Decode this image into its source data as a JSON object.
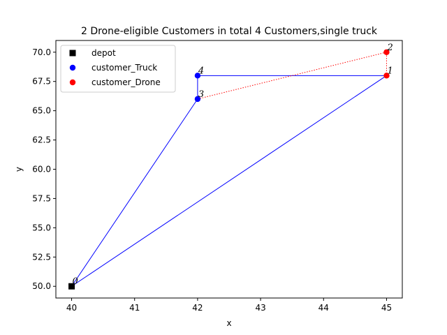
{
  "chart_data": {
    "type": "scatter",
    "title": "2 Drone-eligible Customers in total 4 Customers,single truck",
    "xlabel": "x",
    "ylabel": "y",
    "xlim": [
      39.75,
      45.25
    ],
    "ylim": [
      49.0,
      71.0
    ],
    "xticks": [
      40,
      41,
      42,
      43,
      44,
      45
    ],
    "xtick_labels": [
      "40",
      "41",
      "42",
      "43",
      "44",
      "45"
    ],
    "yticks": [
      50.0,
      52.5,
      55.0,
      57.5,
      60.0,
      62.5,
      65.0,
      67.5,
      70.0
    ],
    "ytick_labels": [
      "50.0",
      "52.5",
      "55.0",
      "57.5",
      "60.0",
      "62.5",
      "65.0",
      "67.5",
      "70.0"
    ],
    "grid": false,
    "legend_position": "top-left",
    "series": [
      {
        "name": "depot",
        "marker": "square",
        "color": "#000000",
        "points": [
          {
            "x": 40,
            "y": 50,
            "label": "0"
          }
        ]
      },
      {
        "name": "customer_Truck",
        "marker": "circle",
        "color": "#0000ff",
        "points": [
          {
            "x": 42,
            "y": 68,
            "label": "4"
          },
          {
            "x": 42,
            "y": 66,
            "label": "3"
          }
        ]
      },
      {
        "name": "customer_Drone",
        "marker": "circle",
        "color": "#ff0000",
        "points": [
          {
            "x": 45,
            "y": 68,
            "label": "1"
          },
          {
            "x": 45,
            "y": 70,
            "label": "2"
          }
        ]
      }
    ],
    "truck_route": {
      "color": "#0000ff",
      "style": "solid",
      "path": [
        {
          "x": 40,
          "y": 50
        },
        {
          "x": 42,
          "y": 66
        },
        {
          "x": 42,
          "y": 68
        },
        {
          "x": 45,
          "y": 68
        },
        {
          "x": 40,
          "y": 50
        }
      ]
    },
    "drone_route": {
      "color": "#ff0000",
      "style": "dotted",
      "path": [
        {
          "x": 42,
          "y": 66
        },
        {
          "x": 45,
          "y": 70
        },
        {
          "x": 45,
          "y": 68
        }
      ]
    }
  }
}
